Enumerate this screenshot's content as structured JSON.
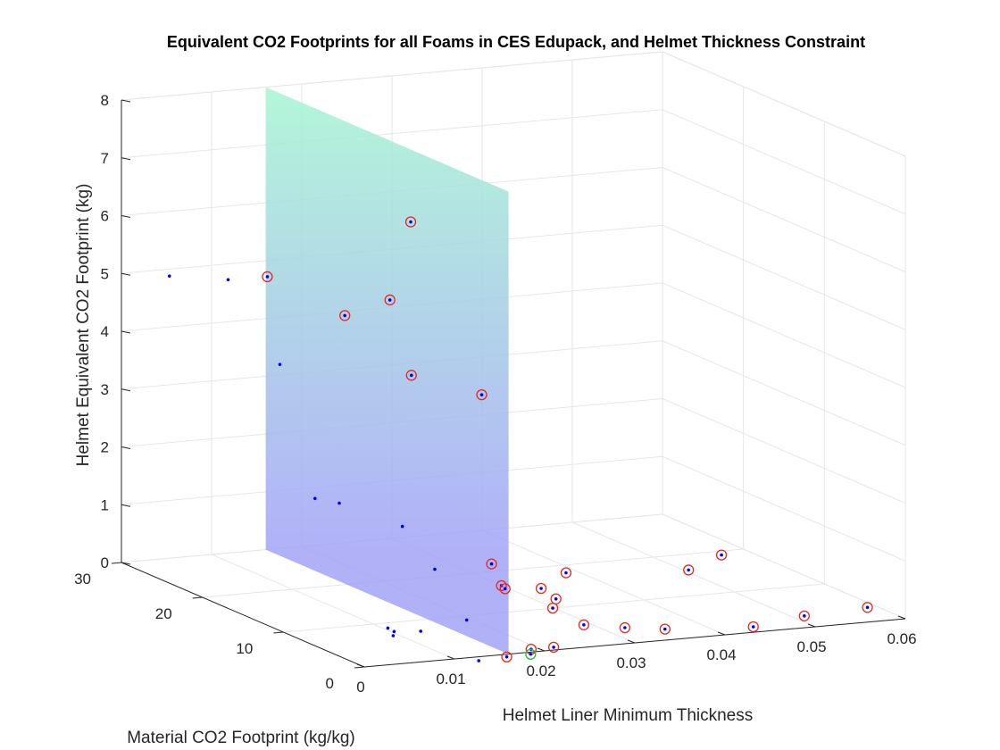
{
  "chart_data": {
    "type": "scatter3d",
    "title": "Equivalent CO2 Footprints for all Foams in CES Edupack, and Helmet Thickness Constraint",
    "xlabel": "Helmet Liner Minimum Thickness",
    "ylabel": "Material CO2 Footprint (kg/kg)",
    "zlabel": "Helmet Equivalent CO2 Footprint (kg)",
    "xlim": [
      0,
      0.06
    ],
    "ylim": [
      0,
      30
    ],
    "zlim": [
      0,
      8
    ],
    "xticks": [
      "0",
      "0.01",
      "0.02",
      "0.03",
      "0.04",
      "0.05",
      "0.06"
    ],
    "yticks": [
      "0",
      "10",
      "20",
      "30"
    ],
    "zticks": [
      "0",
      "1",
      "2",
      "3",
      "4",
      "5",
      "6",
      "7",
      "8"
    ],
    "grid": true,
    "constraint_plane": {
      "x": 0.016,
      "z_range": [
        0,
        8
      ],
      "y_range": [
        0,
        30
      ],
      "color_top": "#a6f5d2",
      "color_bottom": "#a3a3f7"
    },
    "colors": {
      "point": "#0000ee",
      "outside_marker": "#e8251f",
      "selected_marker": "#19c43b",
      "grid": "#e6e6e6",
      "axis": "#262626"
    },
    "series": [
      {
        "marker": "dot",
        "points": [
          [
            0.002,
            26.3,
            5.15
          ],
          [
            0.006,
            23.5,
            5.2
          ],
          [
            0.005,
            16.0,
            4.2
          ],
          [
            0.008,
            12.0,
            2.0
          ],
          [
            0.008,
            15.0,
            1.9
          ],
          [
            0.015,
            12.0,
            1.5
          ],
          [
            0.015,
            8.0,
            1.0
          ],
          [
            0.0145,
            3.5,
            0.4
          ],
          [
            0.008,
            6.0,
            0.2
          ],
          [
            0.006,
            3.0,
            0.35
          ],
          [
            0.005,
            2.0,
            0.35
          ],
          [
            0.0085,
            2.5,
            0.35
          ],
          [
            0.01,
            -3.0,
            0.15
          ]
        ]
      },
      {
        "marker": "circle",
        "points": [
          [
            0.009,
            22.0,
            5.3
          ],
          [
            0.014,
            18.0,
            4.8
          ],
          [
            0.019,
            18.0,
            5.0
          ],
          [
            0.024,
            21.0,
            6.1
          ],
          [
            0.016,
            12.0,
            4.1
          ],
          [
            0.022,
            10.0,
            3.8
          ],
          [
            0.0195,
            6.0,
            1.15
          ],
          [
            0.017,
            2.0,
            1.05
          ],
          [
            0.021,
            6.0,
            0.7
          ],
          [
            0.0235,
            2.5,
            0.7
          ],
          [
            0.025,
            6.0,
            0.65
          ],
          [
            0.03,
            8.5,
            0.7
          ],
          [
            0.04,
            4.5,
            0.85
          ],
          [
            0.045,
            6.0,
            0.95
          ],
          [
            0.02,
            -1.0,
            0.8
          ],
          [
            0.023,
            -1.5,
            0.5
          ],
          [
            0.028,
            -1.0,
            0.35
          ],
          [
            0.032,
            -1.5,
            0.3
          ],
          [
            0.04,
            -3.5,
            0.35
          ],
          [
            0.047,
            -2.0,
            0.35
          ],
          [
            0.054,
            -2.0,
            0.4
          ],
          [
            0.021,
            0.0,
            0.05
          ],
          [
            0.0185,
            0.0,
            0.05
          ],
          [
            0.014,
            -2.0,
            0.1
          ]
        ]
      },
      {
        "marker": "selected",
        "points": [
          [
            0.018,
            -0.5,
            0.0
          ]
        ]
      }
    ]
  }
}
